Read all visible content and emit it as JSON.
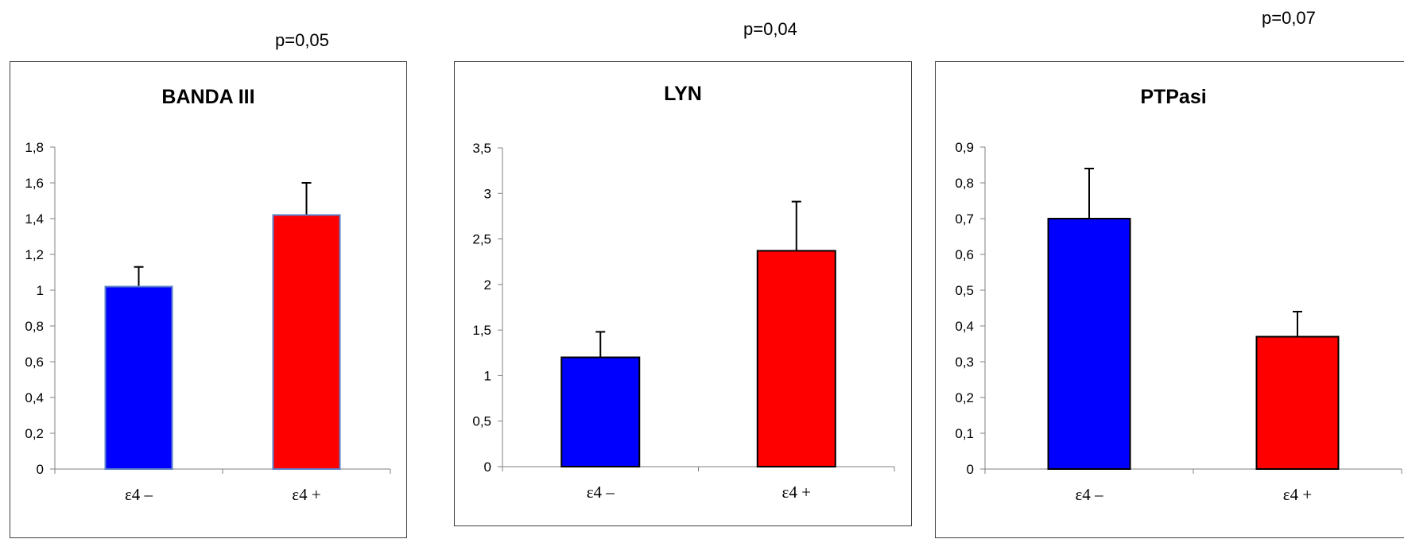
{
  "p_values": [
    "p=0,05",
    "p=0,04",
    "p=0,07"
  ],
  "chart_data": [
    {
      "type": "bar",
      "title": "BANDA III",
      "categories": [
        "ε4 –",
        "ε4 +"
      ],
      "values": [
        1.02,
        1.42
      ],
      "error_upper": [
        1.13,
        1.6
      ],
      "colors": [
        "#0000ff",
        "#ff0000"
      ],
      "ylim": [
        0,
        1.8
      ],
      "yticks": [
        0,
        0.2,
        0.4,
        0.6,
        0.8,
        1.0,
        1.2,
        1.4,
        1.6,
        1.8
      ],
      "ytick_labels": [
        "0",
        "0,2",
        "0,4",
        "0,6",
        "0,8",
        "1",
        "1,2",
        "1,4",
        "1,6",
        "1,8"
      ],
      "p_value": "p=0,05"
    },
    {
      "type": "bar",
      "title": "LYN",
      "categories": [
        "ε4 –",
        "ε4 +"
      ],
      "values": [
        1.2,
        2.37
      ],
      "error_upper": [
        1.48,
        2.91
      ],
      "colors": [
        "#0000ff",
        "#ff0000"
      ],
      "ylim": [
        0,
        3.5
      ],
      "yticks": [
        0,
        0.5,
        1.0,
        1.5,
        2.0,
        2.5,
        3.0,
        3.5
      ],
      "ytick_labels": [
        "0",
        "0,5",
        "1",
        "1,5",
        "2",
        "2,5",
        "3",
        "3,5"
      ],
      "p_value": "p=0,04"
    },
    {
      "type": "bar",
      "title": "PTPasi",
      "categories": [
        "ε4 –",
        "ε4 +"
      ],
      "values": [
        0.7,
        0.37
      ],
      "error_upper": [
        0.84,
        0.44
      ],
      "colors": [
        "#0000ff",
        "#ff0000"
      ],
      "ylim": [
        0,
        0.9
      ],
      "yticks": [
        0,
        0.1,
        0.2,
        0.3,
        0.4,
        0.5,
        0.6,
        0.7,
        0.8,
        0.9
      ],
      "ytick_labels": [
        "0",
        "0,1",
        "0,2",
        "0,3",
        "0,4",
        "0,5",
        "0,6",
        "0,7",
        "0,8",
        "0,9"
      ],
      "p_value": "p=0,07"
    }
  ]
}
